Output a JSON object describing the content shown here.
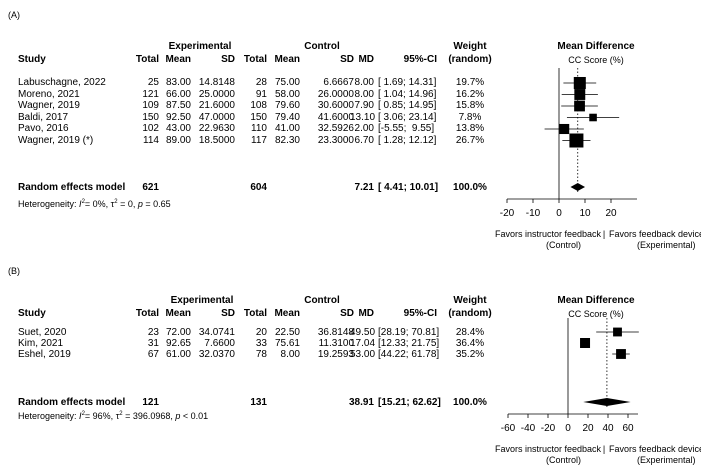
{
  "panels": [
    {
      "label": "(A)",
      "header": {
        "experimental": "Experimental",
        "control": "Control",
        "study": "Study",
        "total": "Total",
        "mean": "Mean",
        "sd": "SD",
        "md": "MD",
        "ci": "95%-CI",
        "weight": "Weight",
        "weight_sub": "(random)"
      },
      "rows": [
        {
          "study": "Labuschagne, 2022",
          "e_total": "25",
          "e_mean": "83.00",
          "e_sd": "14.8148",
          "c_total": "28",
          "c_mean": "75.00",
          "c_sd": "6.6667",
          "md": "8.00",
          "ci": "[ 1.69; 14.31]",
          "weight": "19.7%"
        },
        {
          "study": "Moreno, 2021",
          "e_total": "121",
          "e_mean": "66.00",
          "e_sd": "25.0000",
          "c_total": "91",
          "c_mean": "58.00",
          "c_sd": "26.0000",
          "md": "8.00",
          "ci": "[ 1.04; 14.96]",
          "weight": "16.2%"
        },
        {
          "study": "Wagner, 2019",
          "e_total": "109",
          "e_mean": "87.50",
          "e_sd": "21.6000",
          "c_total": "108",
          "c_mean": "79.60",
          "c_sd": "30.6000",
          "md": "7.90",
          "ci": "[ 0.85; 14.95]",
          "weight": "15.8%"
        },
        {
          "study": "Baldi, 2017",
          "e_total": "150",
          "e_mean": "92.50",
          "e_sd": "47.0000",
          "c_total": "150",
          "c_mean": "79.40",
          "c_sd": "41.6000",
          "md": "13.10",
          "ci": "[ 3.06; 23.14]",
          "weight": "7.8%"
        },
        {
          "study": "Pavo, 2016",
          "e_total": "102",
          "e_mean": "43.00",
          "e_sd": "22.9630",
          "c_total": "110",
          "c_mean": "41.00",
          "c_sd": "32.5926",
          "md": "2.00",
          "ci": "[-5.55;  9.55]",
          "weight": "13.8%"
        },
        {
          "study": "Wagner, 2019 (*)",
          "e_total": "114",
          "e_mean": "89.00",
          "e_sd": "18.5000",
          "c_total": "117",
          "c_mean": "82.30",
          "c_sd": "23.3000",
          "md": "6.70",
          "ci": "[ 1.28; 12.12]",
          "weight": "26.7%"
        }
      ],
      "summary": {
        "label": "Random effects model",
        "e_total": "621",
        "c_total": "604",
        "md": "7.21",
        "ci": "[ 4.41; 10.01]",
        "weight": "100.0%"
      },
      "heterogeneity": {
        "prefix": "Heterogeneity: ",
        "i2": "= 0%, ",
        "tau2": " = 0, ",
        "p": " = 0.65",
        "i": "I",
        "tau": "τ",
        "pvar": "p",
        "sup": "2"
      },
      "plot_title": "Mean Difference",
      "plot_subtitle": "CC Score (%)",
      "favors_left": "Favors instructor feedback",
      "favors_left_sub": "(Control)",
      "favors_sep": "|",
      "favors_right": "Favors feedback device",
      "favors_right_sub": "(Experimental)"
    },
    {
      "label": "(B)",
      "header": {
        "experimental": "Experimental",
        "control": "Control",
        "study": "Study",
        "total": "Total",
        "mean": "Mean",
        "sd": "SD",
        "md": "MD",
        "ci": "95%-CI",
        "weight": "Weight",
        "weight_sub": "(random)"
      },
      "rows": [
        {
          "study": "Suet, 2020",
          "e_total": "23",
          "e_mean": "72.00",
          "e_sd": "34.0741",
          "c_total": "20",
          "c_mean": "22.50",
          "c_sd": "36.8148",
          "md": "49.50",
          "ci": "[28.19; 70.81]",
          "weight": "28.4%"
        },
        {
          "study": "Kim, 2021",
          "e_total": "31",
          "e_mean": "92.65",
          "e_sd": "7.6600",
          "c_total": "33",
          "c_mean": "75.61",
          "c_sd": "11.3100",
          "md": "17.04",
          "ci": "[12.33; 21.75]",
          "weight": "36.4%"
        },
        {
          "study": "Eshel, 2019",
          "e_total": "67",
          "e_mean": "61.00",
          "e_sd": "32.0370",
          "c_total": "78",
          "c_mean": "8.00",
          "c_sd": "19.2593",
          "md": "53.00",
          "ci": "[44.22; 61.78]",
          "weight": "35.2%"
        }
      ],
      "summary": {
        "label": "Random effects model",
        "e_total": "121",
        "c_total": "131",
        "md": "38.91",
        "ci": "[15.21; 62.62]",
        "weight": "100.0%"
      },
      "heterogeneity": {
        "prefix": "Heterogeneity: ",
        "i2": "= 96%, ",
        "tau2": " = 396.0968, ",
        "p": " < 0.01",
        "i": "I",
        "tau": "τ",
        "pvar": "p",
        "sup": "2"
      },
      "plot_title": "Mean Difference",
      "plot_subtitle": "CC Score (%)",
      "favors_left": "Favors instructor feedback",
      "favors_left_sub": "(Control)",
      "favors_sep": "|",
      "favors_right": "Favors feedback device",
      "favors_right_sub": "(Experimental)"
    }
  ],
  "chart_data": [
    {
      "type": "forest",
      "title": "Mean Difference",
      "xlabel": "CC Score (%)",
      "xlim": [
        -20,
        30
      ],
      "ticks": [
        -20,
        -10,
        0,
        10,
        20
      ],
      "tick_labels": [
        "-20",
        "-10",
        "0",
        "10",
        "20"
      ],
      "categories": [
        "Labuschagne, 2022",
        "Moreno, 2021",
        "Wagner, 2019",
        "Baldi, 2017",
        "Pavo, 2016",
        "Wagner, 2019 (*)"
      ],
      "md": [
        8.0,
        8.0,
        7.9,
        13.1,
        2.0,
        6.7
      ],
      "lower": [
        1.69,
        1.04,
        0.85,
        3.06,
        -5.55,
        1.28
      ],
      "upper": [
        14.31,
        14.96,
        14.95,
        23.14,
        9.55,
        12.12
      ],
      "weights": [
        19.7,
        16.2,
        15.8,
        7.8,
        13.8,
        26.7
      ],
      "pooled": {
        "md": 7.21,
        "lower": 4.41,
        "upper": 10.01
      }
    },
    {
      "type": "forest",
      "title": "Mean Difference",
      "xlabel": "CC Score (%)",
      "xlim": [
        -60,
        70
      ],
      "ticks": [
        -60,
        -40,
        -20,
        0,
        20,
        40,
        60
      ],
      "tick_labels": [
        "-60",
        "-40",
        "-20",
        "0",
        "20",
        "40",
        "60"
      ],
      "categories": [
        "Suet, 2020",
        "Kim, 2021",
        "Eshel, 2019"
      ],
      "md": [
        49.5,
        17.04,
        53.0
      ],
      "lower": [
        28.19,
        12.33,
        44.22
      ],
      "upper": [
        70.81,
        21.75,
        61.78
      ],
      "weights": [
        28.4,
        36.4,
        35.2
      ],
      "pooled": {
        "md": 38.91,
        "lower": 15.21,
        "upper": 62.62
      }
    }
  ]
}
